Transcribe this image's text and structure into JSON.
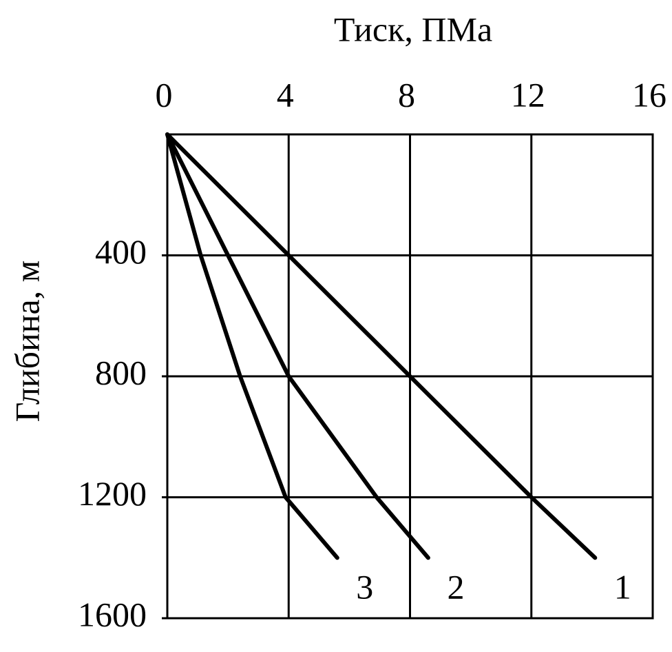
{
  "chart_data": {
    "type": "line",
    "x_label": "Тиск, ПМа",
    "y_label": "Глибина, м",
    "xlim": [
      0,
      16
    ],
    "xticks": [
      0,
      4,
      8,
      12,
      16
    ],
    "ylim": [
      0,
      1600
    ],
    "yticks": [
      400,
      800,
      1200,
      1600
    ],
    "y_reversed": true,
    "x_axis_top": true,
    "grid": true,
    "series": [
      {
        "name": "1",
        "color": "#000000",
        "x": [
          0,
          4,
          8,
          12,
          14.1
        ],
        "values": [
          0,
          400,
          800,
          1200,
          1400
        ]
      },
      {
        "name": "2",
        "color": "#000000",
        "x": [
          0,
          2,
          4,
          6.9,
          8.6
        ],
        "values": [
          0,
          400,
          800,
          1200,
          1400
        ]
      },
      {
        "name": "3",
        "color": "#000000",
        "x": [
          0,
          1.1,
          2.4,
          3.9,
          5.6
        ],
        "values": [
          0,
          400,
          800,
          1200,
          1400
        ]
      }
    ]
  }
}
